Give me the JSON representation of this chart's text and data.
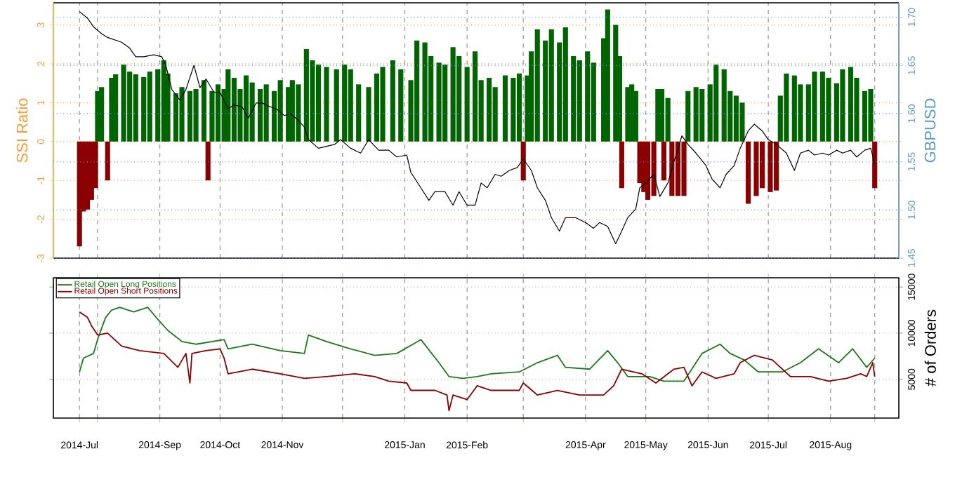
{
  "chart_data": [
    {
      "type": "bar",
      "ylabel": "SSI Ratio",
      "y2label": "GBPUSD",
      "grid": true,
      "tick_labels": "y",
      "xlim": [
        "2014-07-10",
        "2015-09-04"
      ],
      "xticks": [
        {
          "value": "2014-07-23",
          "label": null
        },
        {
          "value": "2014-08-01",
          "label": null
        },
        {
          "value": "2014-09-01",
          "label": null
        },
        {
          "value": "2014-10-01",
          "label": null
        },
        {
          "value": "2014-11-01",
          "label": null
        },
        {
          "value": "2014-12-01",
          "label": null
        },
        {
          "value": "2015-01-01",
          "label": null
        },
        {
          "value": "2015-02-01",
          "label": null
        },
        {
          "value": "2015-03-01",
          "label": null
        },
        {
          "value": "2015-04-01",
          "label": null
        },
        {
          "value": "2015-05-01",
          "label": null
        },
        {
          "value": "2015-06-01",
          "label": null
        },
        {
          "value": "2015-07-01",
          "label": null
        },
        {
          "value": "2015-08-01",
          "label": null
        },
        {
          "value": "2015-08-23",
          "label": null
        }
      ],
      "ylim": [
        -3,
        3.57
      ],
      "yticks": [
        -3,
        -2,
        -1,
        0,
        1,
        2,
        3
      ],
      "y2lim": [
        1.45,
        1.715
      ],
      "y2ticks": [
        1.45,
        {
          "value": 1.5,
          "label": "1.50"
        },
        1.55,
        {
          "value": 1.6,
          "label": "1.60"
        },
        1.65,
        {
          "value": 1.7,
          "label": "1.70"
        }
      ],
      "series": [
        {
          "type": "bar",
          "x": [
            "2014-07-23",
            "2014-07-25",
            "2014-07-27",
            "2014-07-29",
            "2014-07-31",
            "2014-08-01",
            "2014-08-03",
            "2014-08-06",
            "2014-08-08",
            "2014-08-10",
            "2014-08-14",
            "2014-08-17",
            "2014-08-20",
            "2014-08-24",
            "2014-08-27",
            "2014-08-31",
            "2014-09-03",
            "2014-09-05",
            "2014-09-09",
            "2014-09-12",
            "2014-09-16",
            "2014-09-19",
            "2014-09-23",
            "2014-09-25",
            "2014-09-27",
            "2014-09-30",
            "2014-10-03",
            "2014-10-05",
            "2014-10-08",
            "2014-10-11",
            "2014-10-14",
            "2014-10-17",
            "2014-10-21",
            "2014-10-24",
            "2014-10-28",
            "2014-10-31",
            "2014-11-04",
            "2014-11-06",
            "2014-11-09",
            "2014-11-13",
            "2014-11-16",
            "2014-11-19",
            "2014-11-23",
            "2014-11-28",
            "2014-12-02",
            "2014-12-05",
            "2014-12-09",
            "2014-12-14",
            "2014-12-18",
            "2014-12-21",
            "2014-12-26",
            "2014-12-30",
            "2015-01-04",
            "2015-01-07",
            "2015-01-11",
            "2015-01-14",
            "2015-01-18",
            "2015-01-21",
            "2015-01-25",
            "2015-01-28",
            "2015-02-01",
            "2015-02-05",
            "2015-02-08",
            "2015-02-12",
            "2015-02-15",
            "2015-02-20",
            "2015-02-24",
            "2015-02-27",
            "2015-03-01",
            "2015-03-03",
            "2015-03-05",
            "2015-03-08",
            "2015-03-12",
            "2015-03-15",
            "2015-03-19",
            "2015-03-22",
            "2015-03-26",
            "2015-03-29",
            "2015-04-02",
            "2015-04-05",
            "2015-04-10",
            "2015-04-12",
            "2015-04-16",
            "2015-04-18",
            "2015-04-19",
            "2015-04-22",
            "2015-04-24",
            "2015-04-26",
            "2015-04-28",
            "2015-04-30",
            "2015-05-02",
            "2015-05-05",
            "2015-05-07",
            "2015-05-09",
            "2015-05-10",
            "2015-05-12",
            "2015-05-14",
            "2015-05-17",
            "2015-05-20",
            "2015-05-22",
            "2015-05-26",
            "2015-05-29",
            "2015-06-02",
            "2015-06-05",
            "2015-06-09",
            "2015-06-12",
            "2015-06-15",
            "2015-06-18",
            "2015-06-21",
            "2015-06-25",
            "2015-06-28",
            "2015-07-02",
            "2015-07-05",
            "2015-07-07",
            "2015-07-10",
            "2015-07-14",
            "2015-07-17",
            "2015-07-21",
            "2015-07-24",
            "2015-07-28",
            "2015-07-31",
            "2015-08-04",
            "2015-08-07",
            "2015-08-11",
            "2015-08-14",
            "2015-08-18",
            "2015-08-21",
            "2015-08-23"
          ],
          "values": [
            -2.7,
            -1.8,
            -1.75,
            -1.5,
            -1.2,
            1.3,
            1.4,
            -1.0,
            1.64,
            1.73,
            1.98,
            1.8,
            1.73,
            1.66,
            1.8,
            1.86,
            2.09,
            1.75,
            1.24,
            1.4,
            1.3,
            1.35,
            1.58,
            -1.0,
            1.3,
            1.47,
            1.35,
            1.86,
            1.64,
            1.35,
            1.7,
            1.52,
            1.35,
            1.47,
            1.3,
            1.58,
            1.4,
            1.58,
            1.47,
            2.38,
            2.09,
            1.98,
            1.92,
            1.86,
            1.98,
            1.86,
            1.47,
            1.4,
            1.75,
            1.92,
            2.09,
            1.86,
            1.58,
            2.6,
            2.55,
            2.2,
            2.03,
            1.98,
            2.43,
            2.2,
            1.92,
            2.32,
            1.58,
            1.64,
            1.4,
            1.7,
            1.64,
            1.75,
            -1.0,
            1.7,
            2.32,
            2.89,
            2.6,
            2.89,
            2.55,
            2.94,
            2.2,
            2.09,
            2.32,
            2.03,
            2.66,
            3.4,
            3.0,
            2.2,
            -1.2,
            1.4,
            1.47,
            1.3,
            -1.07,
            -1.3,
            -1.5,
            -1.4,
            1.35,
            1.35,
            -1.0,
            1.12,
            -1.4,
            -1.4,
            -1.4,
            1.3,
            1.4,
            1.35,
            1.47,
            1.98,
            1.86,
            1.3,
            1.18,
            1.0,
            -1.6,
            -1.4,
            -1.2,
            -1.3,
            -1.26,
            1.18,
            1.75,
            1.7,
            1.47,
            1.47,
            1.8,
            1.8,
            1.64,
            1.5,
            1.86,
            1.92,
            1.64,
            1.3,
            1.35,
            -1.2
          ],
          "colors": [
            "#8b0000",
            "#8b0000",
            "#8b0000",
            "#8b0000",
            "#8b0000",
            "#006400",
            "#006400",
            "#8b0000",
            "#006400",
            "#006400",
            "#006400",
            "#006400",
            "#006400",
            "#006400",
            "#006400",
            "#006400",
            "#006400",
            "#006400",
            "#006400",
            "#006400",
            "#006400",
            "#006400",
            "#006400",
            "#8b0000",
            "#006400",
            "#006400",
            "#006400",
            "#006400",
            "#006400",
            "#006400",
            "#006400",
            "#006400",
            "#006400",
            "#006400",
            "#006400",
            "#006400",
            "#006400",
            "#006400",
            "#006400",
            "#006400",
            "#006400",
            "#006400",
            "#006400",
            "#006400",
            "#006400",
            "#006400",
            "#006400",
            "#006400",
            "#006400",
            "#006400",
            "#006400",
            "#006400",
            "#006400",
            "#006400",
            "#006400",
            "#006400",
            "#006400",
            "#006400",
            "#006400",
            "#006400",
            "#006400",
            "#006400",
            "#006400",
            "#006400",
            "#006400",
            "#006400",
            "#006400",
            "#006400",
            "#8b0000",
            "#006400",
            "#006400",
            "#006400",
            "#006400",
            "#006400",
            "#006400",
            "#006400",
            "#006400",
            "#006400",
            "#006400",
            "#006400",
            "#006400",
            "#006400",
            "#006400",
            "#006400",
            "#8b0000",
            "#006400",
            "#006400",
            "#006400",
            "#8b0000",
            "#8b0000",
            "#8b0000",
            "#8b0000",
            "#006400",
            "#006400",
            "#8b0000",
            "#006400",
            "#8b0000",
            "#8b0000",
            "#8b0000",
            "#006400",
            "#006400",
            "#006400",
            "#006400",
            "#006400",
            "#006400",
            "#006400",
            "#006400",
            "#006400",
            "#8b0000",
            "#8b0000",
            "#8b0000",
            "#8b0000",
            "#8b0000",
            "#006400",
            "#006400",
            "#006400",
            "#006400",
            "#006400",
            "#006400",
            "#006400",
            "#006400",
            "#006400",
            "#006400",
            "#006400",
            "#006400",
            "#006400",
            "#006400",
            "#8b0000"
          ]
        },
        {
          "type": "line",
          "axis": "y2",
          "color": "#000000",
          "x": [
            "2014-07-23",
            "2014-07-27",
            "2014-07-30",
            "2014-08-03",
            "2014-08-06",
            "2014-08-13",
            "2014-08-17",
            "2014-08-20",
            "2014-08-24",
            "2014-08-29",
            "2014-09-02",
            "2014-09-04",
            "2014-09-07",
            "2014-09-11",
            "2014-09-14",
            "2014-09-18",
            "2014-09-21",
            "2014-09-24",
            "2014-09-28",
            "2014-10-01",
            "2014-10-05",
            "2014-10-08",
            "2014-10-12",
            "2014-10-15",
            "2014-10-19",
            "2014-10-22",
            "2014-10-26",
            "2014-10-29",
            "2014-11-02",
            "2014-11-05",
            "2014-11-09",
            "2014-11-12",
            "2014-11-14",
            "2014-11-19",
            "2014-11-23",
            "2014-11-27",
            "2014-11-30",
            "2014-12-05",
            "2014-12-10",
            "2014-12-14",
            "2014-12-19",
            "2014-12-24",
            "2014-12-28",
            "2015-01-02",
            "2015-01-04",
            "2015-01-09",
            "2015-01-13",
            "2015-01-16",
            "2015-01-21",
            "2015-01-25",
            "2015-01-28",
            "2015-02-01",
            "2015-02-05",
            "2015-02-08",
            "2015-02-11",
            "2015-02-15",
            "2015-02-18",
            "2015-02-22",
            "2015-02-26",
            "2015-03-01",
            "2015-03-05",
            "2015-03-08",
            "2015-03-12",
            "2015-03-15",
            "2015-03-19",
            "2015-03-22",
            "2015-03-27",
            "2015-04-01",
            "2015-04-05",
            "2015-04-08",
            "2015-04-12",
            "2015-04-16",
            "2015-04-19",
            "2015-04-22",
            "2015-04-26",
            "2015-04-28",
            "2015-05-01",
            "2015-05-05",
            "2015-05-08",
            "2015-05-12",
            "2015-05-15",
            "2015-05-19",
            "2015-05-22",
            "2015-05-26",
            "2015-05-31",
            "2015-06-03",
            "2015-06-07",
            "2015-06-10",
            "2015-06-14",
            "2015-06-17",
            "2015-06-21",
            "2015-06-24",
            "2015-06-28",
            "2015-07-01",
            "2015-07-05",
            "2015-07-10",
            "2015-07-14",
            "2015-07-17",
            "2015-07-21",
            "2015-07-24",
            "2015-07-28",
            "2015-07-31",
            "2015-08-04",
            "2015-08-07",
            "2015-08-11",
            "2015-08-14",
            "2015-08-18",
            "2015-08-21",
            "2015-08-23"
          ],
          "values": [
            1.706,
            1.699,
            1.69,
            1.683,
            1.679,
            1.674,
            1.668,
            1.659,
            1.659,
            1.661,
            1.659,
            1.65,
            1.625,
            1.614,
            1.625,
            1.65,
            1.627,
            1.636,
            1.622,
            1.622,
            1.605,
            1.609,
            1.607,
            1.595,
            1.611,
            1.611,
            1.607,
            1.605,
            1.598,
            1.6,
            1.593,
            1.586,
            1.573,
            1.564,
            1.566,
            1.568,
            1.573,
            1.564,
            1.559,
            1.573,
            1.562,
            1.562,
            1.555,
            1.557,
            1.539,
            1.523,
            1.51,
            1.519,
            1.519,
            1.505,
            1.519,
            1.505,
            1.505,
            1.528,
            1.523,
            1.537,
            1.535,
            1.541,
            1.544,
            1.553,
            1.541,
            1.523,
            1.51,
            1.492,
            1.478,
            1.492,
            1.492,
            1.487,
            1.481,
            1.487,
            1.483,
            1.465,
            1.478,
            1.492,
            1.501,
            1.523,
            1.528,
            1.537,
            1.514,
            1.528,
            1.55,
            1.577,
            1.568,
            1.559,
            1.546,
            1.532,
            1.523,
            1.537,
            1.546,
            1.564,
            1.582,
            1.589,
            1.582,
            1.573,
            1.568,
            1.559,
            1.541,
            1.559,
            1.562,
            1.557,
            1.559,
            1.557,
            1.562,
            1.559,
            1.562,
            1.555,
            1.562,
            1.564,
            1.548
          ]
        }
      ]
    },
    {
      "type": "line",
      "ylabel": "# of Orders",
      "grid": true,
      "legend": "top left",
      "xlim": [
        "2014-07-10",
        "2015-09-04"
      ],
      "xticks": [
        {
          "value": "2014-07-23",
          "label": "2014-Jul"
        },
        {
          "value": "2014-08-01",
          "label": null
        },
        {
          "value": "2014-09-01",
          "label": "2014-Sep"
        },
        {
          "value": "2014-10-01",
          "label": "2014-Oct"
        },
        {
          "value": "2014-11-01",
          "label": "2014-Nov"
        },
        {
          "value": "2014-12-01",
          "label": null
        },
        {
          "value": "2015-01-01",
          "label": "2015-Jan"
        },
        {
          "value": "2015-02-01",
          "label": "2015-Feb"
        },
        {
          "value": "2015-03-01",
          "label": null
        },
        {
          "value": "2015-04-01",
          "label": "2015-Apr"
        },
        {
          "value": "2015-05-01",
          "label": "2015-May"
        },
        {
          "value": "2015-06-01",
          "label": "2015-Jun"
        },
        {
          "value": "2015-07-01",
          "label": "2015-Jul"
        },
        {
          "value": "2015-08-01",
          "label": "2015-Aug"
        },
        {
          "value": "2015-08-23",
          "label": null
        }
      ],
      "ylim": [
        800,
        16000
      ],
      "yticks": [
        5000,
        10000,
        15000
      ],
      "series": [
        {
          "name": "Retail Open Long Positions",
          "color": "#1a7a1a",
          "x": [
            "2014-07-23",
            "2014-07-25",
            "2014-07-30",
            "2014-08-01",
            "2014-08-05",
            "2014-08-08",
            "2014-08-12",
            "2014-08-19",
            "2014-08-26",
            "2014-08-31",
            "2014-09-05",
            "2014-09-12",
            "2014-09-19",
            "2014-10-03",
            "2014-10-05",
            "2014-10-17",
            "2014-10-31",
            "2014-11-12",
            "2014-11-14",
            "2014-11-23",
            "2014-12-05",
            "2014-12-17",
            "2014-12-28",
            "2015-01-09",
            "2015-01-18",
            "2015-01-23",
            "2015-01-30",
            "2015-02-06",
            "2015-02-13",
            "2015-02-27",
            "2015-03-08",
            "2015-03-18",
            "2015-03-22",
            "2015-04-03",
            "2015-04-12",
            "2015-04-17",
            "2015-04-22",
            "2015-05-03",
            "2015-05-10",
            "2015-05-20",
            "2015-05-29",
            "2015-06-07",
            "2015-06-12",
            "2015-06-19",
            "2015-06-26",
            "2015-07-08",
            "2015-07-17",
            "2015-07-26",
            "2015-08-05",
            "2015-08-12",
            "2015-08-19",
            "2015-08-23"
          ],
          "values": [
            5800,
            7300,
            7800,
            9300,
            11700,
            12500,
            12800,
            12300,
            12800,
            11500,
            10300,
            9100,
            8800,
            9300,
            8300,
            8800,
            8100,
            7800,
            9800,
            9100,
            8300,
            7600,
            7800,
            9300,
            6800,
            5300,
            5100,
            5300,
            5600,
            5800,
            6800,
            7600,
            6300,
            6100,
            8100,
            6800,
            5300,
            5300,
            4800,
            4800,
            7800,
            8800,
            7800,
            7100,
            5800,
            5800,
            6800,
            8300,
            6800,
            8300,
            6300,
            7300
          ]
        },
        {
          "name": "Retail Open Short Positions",
          "color": "#8b0000",
          "x": [
            "2014-07-23",
            "2014-07-27",
            "2014-07-29",
            "2014-08-01",
            "2014-08-06",
            "2014-08-13",
            "2014-08-22",
            "2014-09-03",
            "2014-09-10",
            "2014-09-14",
            "2014-09-16",
            "2014-09-17",
            "2014-09-24",
            "2014-10-01",
            "2014-10-03",
            "2014-10-05",
            "2014-10-17",
            "2014-10-31",
            "2014-11-12",
            "2014-11-23",
            "2014-12-07",
            "2014-12-17",
            "2014-12-24",
            "2015-01-02",
            "2015-01-04",
            "2015-01-16",
            "2015-01-22",
            "2015-01-23",
            "2015-01-25",
            "2015-02-01",
            "2015-02-06",
            "2015-02-13",
            "2015-02-27",
            "2015-03-01",
            "2015-03-08",
            "2015-03-18",
            "2015-03-29",
            "2015-04-10",
            "2015-04-15",
            "2015-04-19",
            "2015-04-29",
            "2015-05-06",
            "2015-05-15",
            "2015-05-20",
            "2015-05-24",
            "2015-05-29",
            "2015-06-05",
            "2015-06-14",
            "2015-06-17",
            "2015-06-24",
            "2015-07-03",
            "2015-07-12",
            "2015-07-22",
            "2015-07-31",
            "2015-08-09",
            "2015-08-16",
            "2015-08-19",
            "2015-08-22",
            "2015-08-23"
          ],
          "values": [
            12300,
            11700,
            10800,
            9800,
            10000,
            8600,
            8100,
            7800,
            6300,
            7800,
            4600,
            7800,
            8100,
            8300,
            7300,
            5600,
            6100,
            5600,
            5100,
            5300,
            5600,
            5300,
            4800,
            4600,
            3800,
            3800,
            3300,
            1600,
            3300,
            2800,
            4300,
            3800,
            3800,
            4600,
            3300,
            3800,
            3300,
            3300,
            4300,
            6100,
            5600,
            4600,
            6100,
            6300,
            4300,
            5800,
            5100,
            5600,
            6800,
            7600,
            7100,
            5300,
            5300,
            4800,
            5100,
            5600,
            5300,
            6800,
            5300
          ]
        }
      ]
    }
  ]
}
